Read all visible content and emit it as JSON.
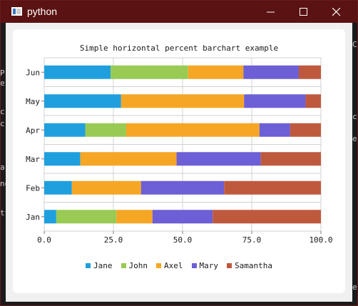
{
  "window": {
    "title": "python"
  },
  "background_fragments": [
    "P",
    "e.",
    "c",
    "c",
    "a",
    "no",
    "tt",
    "C",
    "c",
    "e",
    "e"
  ],
  "chart_data": {
    "type": "bar",
    "orientation": "horizontal",
    "stacked": "percent",
    "title": "Simple horizontal percent barchart example",
    "categories": [
      "Jan",
      "Feb",
      "Mar",
      "Apr",
      "May",
      "Jun"
    ],
    "series": [
      {
        "name": "Jane",
        "color": "#209fdf",
        "values": [
          1,
          2,
          3,
          4,
          5,
          6
        ]
      },
      {
        "name": "John",
        "color": "#99ca53",
        "values": [
          5,
          0,
          0,
          4,
          0,
          7
        ]
      },
      {
        "name": "Axel",
        "color": "#f6a625",
        "values": [
          3,
          5,
          8,
          13,
          8,
          5
        ]
      },
      {
        "name": "Mary",
        "color": "#6d5fd5",
        "values": [
          5,
          6,
          7,
          3,
          4,
          5
        ]
      },
      {
        "name": "Samantha",
        "color": "#bf593e",
        "values": [
          9,
          7,
          5,
          3,
          1,
          2
        ]
      }
    ],
    "xticks": [
      "0.0",
      "25.0",
      "50.0",
      "75.0",
      "100.0"
    ],
    "xlim": [
      0,
      100
    ],
    "grid": true,
    "legend_position": "bottom"
  }
}
